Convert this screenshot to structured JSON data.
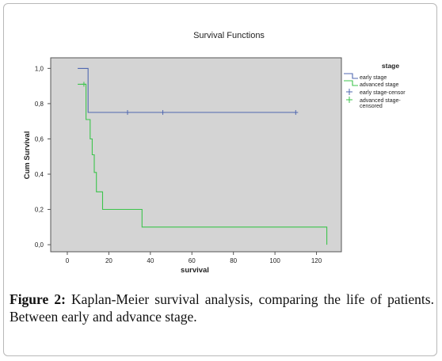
{
  "chart_data": {
    "type": "line",
    "title": "Survival Functions",
    "xlabel": "survival",
    "ylabel": "Cum Survival",
    "xlim": [
      -8,
      132
    ],
    "ylim": [
      -0.04,
      1.06
    ],
    "x_ticks": [
      0,
      20,
      40,
      60,
      80,
      100,
      120
    ],
    "y_ticks": [
      0.0,
      0.2,
      0.4,
      0.6,
      0.8,
      1.0
    ],
    "x_tick_labels": [
      "0",
      "20",
      "40",
      "60",
      "80",
      "100",
      "120"
    ],
    "y_tick_labels": [
      "0,0",
      "0,2",
      "0,4",
      "0,6",
      "0,8",
      "1,0"
    ],
    "grid": false,
    "legend": {
      "title": "stage",
      "position": "right",
      "items": [
        {
          "label": "early stage",
          "kind": "line",
          "color": "#5068b0"
        },
        {
          "label": "advanced stage",
          "kind": "line",
          "color": "#3cc44c"
        },
        {
          "label": "early stage-censor",
          "kind": "cross",
          "color": "#5068b0"
        },
        {
          "label": "advanced stage-",
          "label2": "censored",
          "kind": "cross",
          "color": "#3cc44c"
        }
      ]
    },
    "series": [
      {
        "name": "early stage",
        "color": "#5068b0",
        "x": [
          5,
          10,
          10,
          110
        ],
        "y": [
          1.0,
          1.0,
          0.75,
          0.75
        ],
        "censored": [
          {
            "x": 29,
            "y": 0.75
          },
          {
            "x": 46,
            "y": 0.75
          },
          {
            "x": 110,
            "y": 0.75
          }
        ]
      },
      {
        "name": "advanced stage",
        "color": "#3cc44c",
        "x": [
          5,
          9,
          9,
          11,
          11,
          12,
          12,
          13,
          13,
          14,
          14,
          17,
          17,
          18,
          18,
          36,
          36,
          125,
          125
        ],
        "y": [
          0.91,
          0.91,
          0.71,
          0.71,
          0.6,
          0.6,
          0.51,
          0.51,
          0.41,
          0.41,
          0.3,
          0.3,
          0.2,
          0.2,
          0.2,
          0.2,
          0.1,
          0.1,
          0.0
        ],
        "censored": [
          {
            "x": 8,
            "y": 0.91
          }
        ]
      }
    ]
  },
  "caption": {
    "label": "Figure 2:",
    "text": " Kaplan-Meier survival analysis, comparing the life of patients. Between early and advance stage."
  },
  "colors": {
    "plot_background": "#d4d4d4",
    "axis": "#555555"
  }
}
